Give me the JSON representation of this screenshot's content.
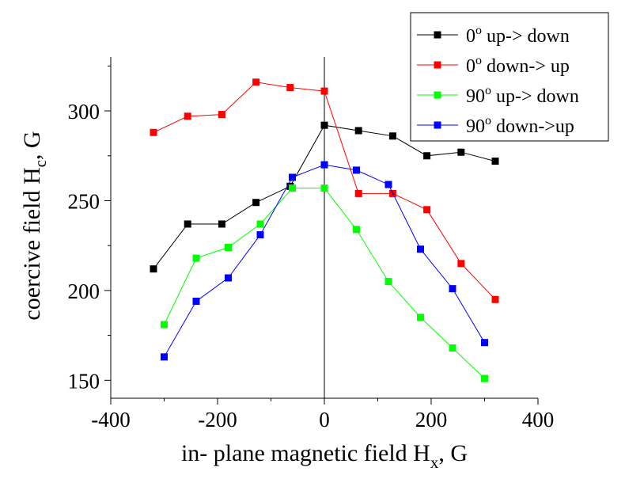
{
  "chart_data": {
    "type": "line",
    "xlabel_main": "in- plane magnetic field H",
    "xlabel_sub": "x",
    "xlabel_tail": ", G",
    "ylabel_main": "coercive field H",
    "ylabel_sub": "c",
    "ylabel_tail": ", G",
    "xlim": [
      -400,
      400
    ],
    "ylim": [
      140,
      330
    ],
    "xticks": [
      -400,
      -200,
      0,
      200,
      400
    ],
    "yticks": [
      150,
      200,
      250,
      300
    ],
    "xtick_labels": [
      "-400",
      "-200",
      "0",
      "200",
      "400"
    ],
    "ytick_labels": [
      "150",
      "200",
      "250",
      "300"
    ],
    "vertical_line_x": 0,
    "legend_position": "top-right",
    "series": [
      {
        "name_prefix": "0",
        "name_suffix": " up-> down",
        "color": "#000000",
        "x": [
          -320,
          -256,
          -192,
          -128,
          -64,
          0,
          64,
          128,
          192,
          256,
          320
        ],
        "y": [
          212,
          237,
          237,
          249,
          258,
          292,
          289,
          286,
          275,
          277,
          272
        ]
      },
      {
        "name_prefix": "0",
        "name_suffix": " down-> up",
        "color": "#ff0000",
        "x": [
          -320,
          -256,
          -192,
          -128,
          -64,
          0,
          64,
          128,
          192,
          256,
          320
        ],
        "y": [
          288,
          297,
          298,
          316,
          313,
          311,
          254,
          254,
          245,
          215,
          195
        ]
      },
      {
        "name_prefix": "90",
        "name_suffix": " up-> down",
        "color": "#00ff00",
        "x": [
          -300,
          -240,
          -180,
          -120,
          -60,
          0,
          60,
          120,
          180,
          240,
          300
        ],
        "y": [
          181,
          218,
          224,
          237,
          257,
          257,
          234,
          205,
          185,
          168,
          151
        ]
      },
      {
        "name_prefix": "90",
        "name_suffix": " down->up",
        "color": "#0000ff",
        "x": [
          -300,
          -240,
          -180,
          -120,
          -60,
          0,
          60,
          120,
          180,
          240,
          300
        ],
        "y": [
          163,
          194,
          207,
          231,
          263,
          270,
          267,
          259,
          223,
          201,
          171
        ]
      }
    ]
  }
}
